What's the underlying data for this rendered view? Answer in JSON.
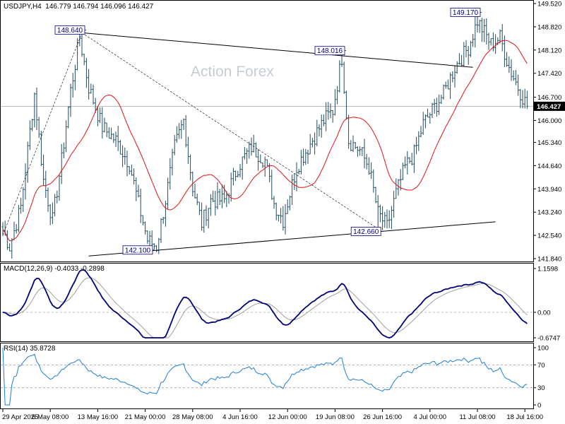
{
  "header": {
    "symbol": "USDJPY,H4",
    "ohlc": "146.779 146.794 146.096 146.427",
    "macd_label": "MACD(12,26,9) -0.4033 -0.2898",
    "rsi_label": "RSI(14) 35.8728"
  },
  "watermark": "Action Forex",
  "colors": {
    "bars": "#1f4d60",
    "ma": "#e31414",
    "trendline": "#000000",
    "macd": "#00007a",
    "signal": "#a0a0a0",
    "rsi": "#1e7fd8",
    "price_tag_bg": "#000000",
    "callout_text": "#00008b"
  },
  "chart_data": [
    {
      "type": "bar",
      "title": "USDJPY,H4",
      "series_type": "ohlc",
      "ylim": [
        141.84,
        149.52
      ],
      "yticks": [
        "149.520",
        "148.820",
        "148.120",
        "147.420",
        "146.700",
        "146.000",
        "145.340",
        "144.640",
        "143.940",
        "143.240",
        "142.540",
        "141.840"
      ],
      "current_price": "146.427",
      "x_ticks": [
        "29 Apr 2025",
        "6 May 08:00",
        "13 May 16:00",
        "21 May 00:00",
        "28 May 08:00",
        "4 Jun 16:00",
        "12 Jun 00:00",
        "19 Jun 08:00",
        "26 Jun 16:00",
        "4 Jul 00:00",
        "11 Jul 08:00",
        "18 Jul 16:00"
      ],
      "anchors": [
        [
          0,
          142.7
        ],
        [
          3,
          142.2
        ],
        [
          8,
          143.4
        ],
        [
          14,
          146.8
        ],
        [
          18,
          144.2
        ],
        [
          22,
          143.0
        ],
        [
          26,
          144.8
        ],
        [
          30,
          146.9
        ],
        [
          34,
          148.5
        ],
        [
          38,
          147.0
        ],
        [
          44,
          145.8
        ],
        [
          50,
          145.4
        ],
        [
          56,
          144.7
        ],
        [
          60,
          143.5
        ],
        [
          64,
          142.4
        ],
        [
          68,
          142.2
        ],
        [
          72,
          143.6
        ],
        [
          76,
          145.2
        ],
        [
          80,
          146.0
        ],
        [
          84,
          144.0
        ],
        [
          88,
          142.9
        ],
        [
          92,
          143.6
        ],
        [
          98,
          143.6
        ],
        [
          104,
          144.6
        ],
        [
          110,
          145.2
        ],
        [
          116,
          144.8
        ],
        [
          120,
          143.5
        ],
        [
          124,
          143.0
        ],
        [
          130,
          144.6
        ],
        [
          136,
          145.3
        ],
        [
          142,
          146.0
        ],
        [
          146,
          146.3
        ],
        [
          150,
          147.9
        ],
        [
          153,
          145.4
        ],
        [
          158,
          145.1
        ],
        [
          162,
          144.6
        ],
        [
          166,
          143.2
        ],
        [
          170,
          142.8
        ],
        [
          174,
          143.8
        ],
        [
          178,
          144.6
        ],
        [
          182,
          145.0
        ],
        [
          186,
          145.9
        ],
        [
          190,
          146.3
        ],
        [
          195,
          146.8
        ],
        [
          200,
          147.6
        ],
        [
          206,
          148.2
        ],
        [
          210,
          149.0
        ],
        [
          216,
          148.3
        ],
        [
          220,
          148.5
        ],
        [
          224,
          147.6
        ],
        [
          228,
          147.0
        ],
        [
          232,
          146.43
        ]
      ],
      "ma_period": 20,
      "annotations": [
        {
          "label": "148.640",
          "bar": 35,
          "value": 148.64
        },
        {
          "label": "142.100",
          "bar": 65,
          "value": 142.1
        },
        {
          "label": "148.016",
          "bar": 150,
          "value": 148.016
        },
        {
          "label": "142.660",
          "bar": 166,
          "value": 142.66
        },
        {
          "label": "149.170",
          "bar": 210,
          "value": 149.17
        }
      ],
      "lines": [
        {
          "style": "solid",
          "from": [
            35,
            148.64
          ],
          "to": [
            208,
            147.6
          ]
        },
        {
          "style": "solid",
          "from": [
            38,
            141.92
          ],
          "to": [
            218,
            142.95
          ]
        },
        {
          "style": "dashed",
          "from": [
            0,
            142.55
          ],
          "to": [
            35,
            148.64
          ]
        },
        {
          "style": "dashed",
          "from": [
            35,
            148.64
          ],
          "to": [
            166,
            142.74
          ]
        }
      ]
    },
    {
      "type": "line",
      "title": "MACD(12,26,9) -0.4033 -0.2898",
      "ylim": [
        -0.6747,
        1.1598
      ],
      "yticks": [
        "1.1598",
        "0.00",
        "-0.6747"
      ],
      "series": [
        {
          "name": "MACD"
        },
        {
          "name": "Signal"
        }
      ],
      "last_values": {
        "macd": -0.4033,
        "signal": -0.2898
      }
    },
    {
      "type": "line",
      "title": "RSI(14) 35.8728",
      "ylim": [
        0,
        100
      ],
      "yticks": [
        "100",
        "70",
        "30",
        "0"
      ],
      "levels": [
        70,
        30
      ],
      "series": [
        {
          "name": "RSI(14)"
        }
      ],
      "last_value": 35.8728
    }
  ]
}
